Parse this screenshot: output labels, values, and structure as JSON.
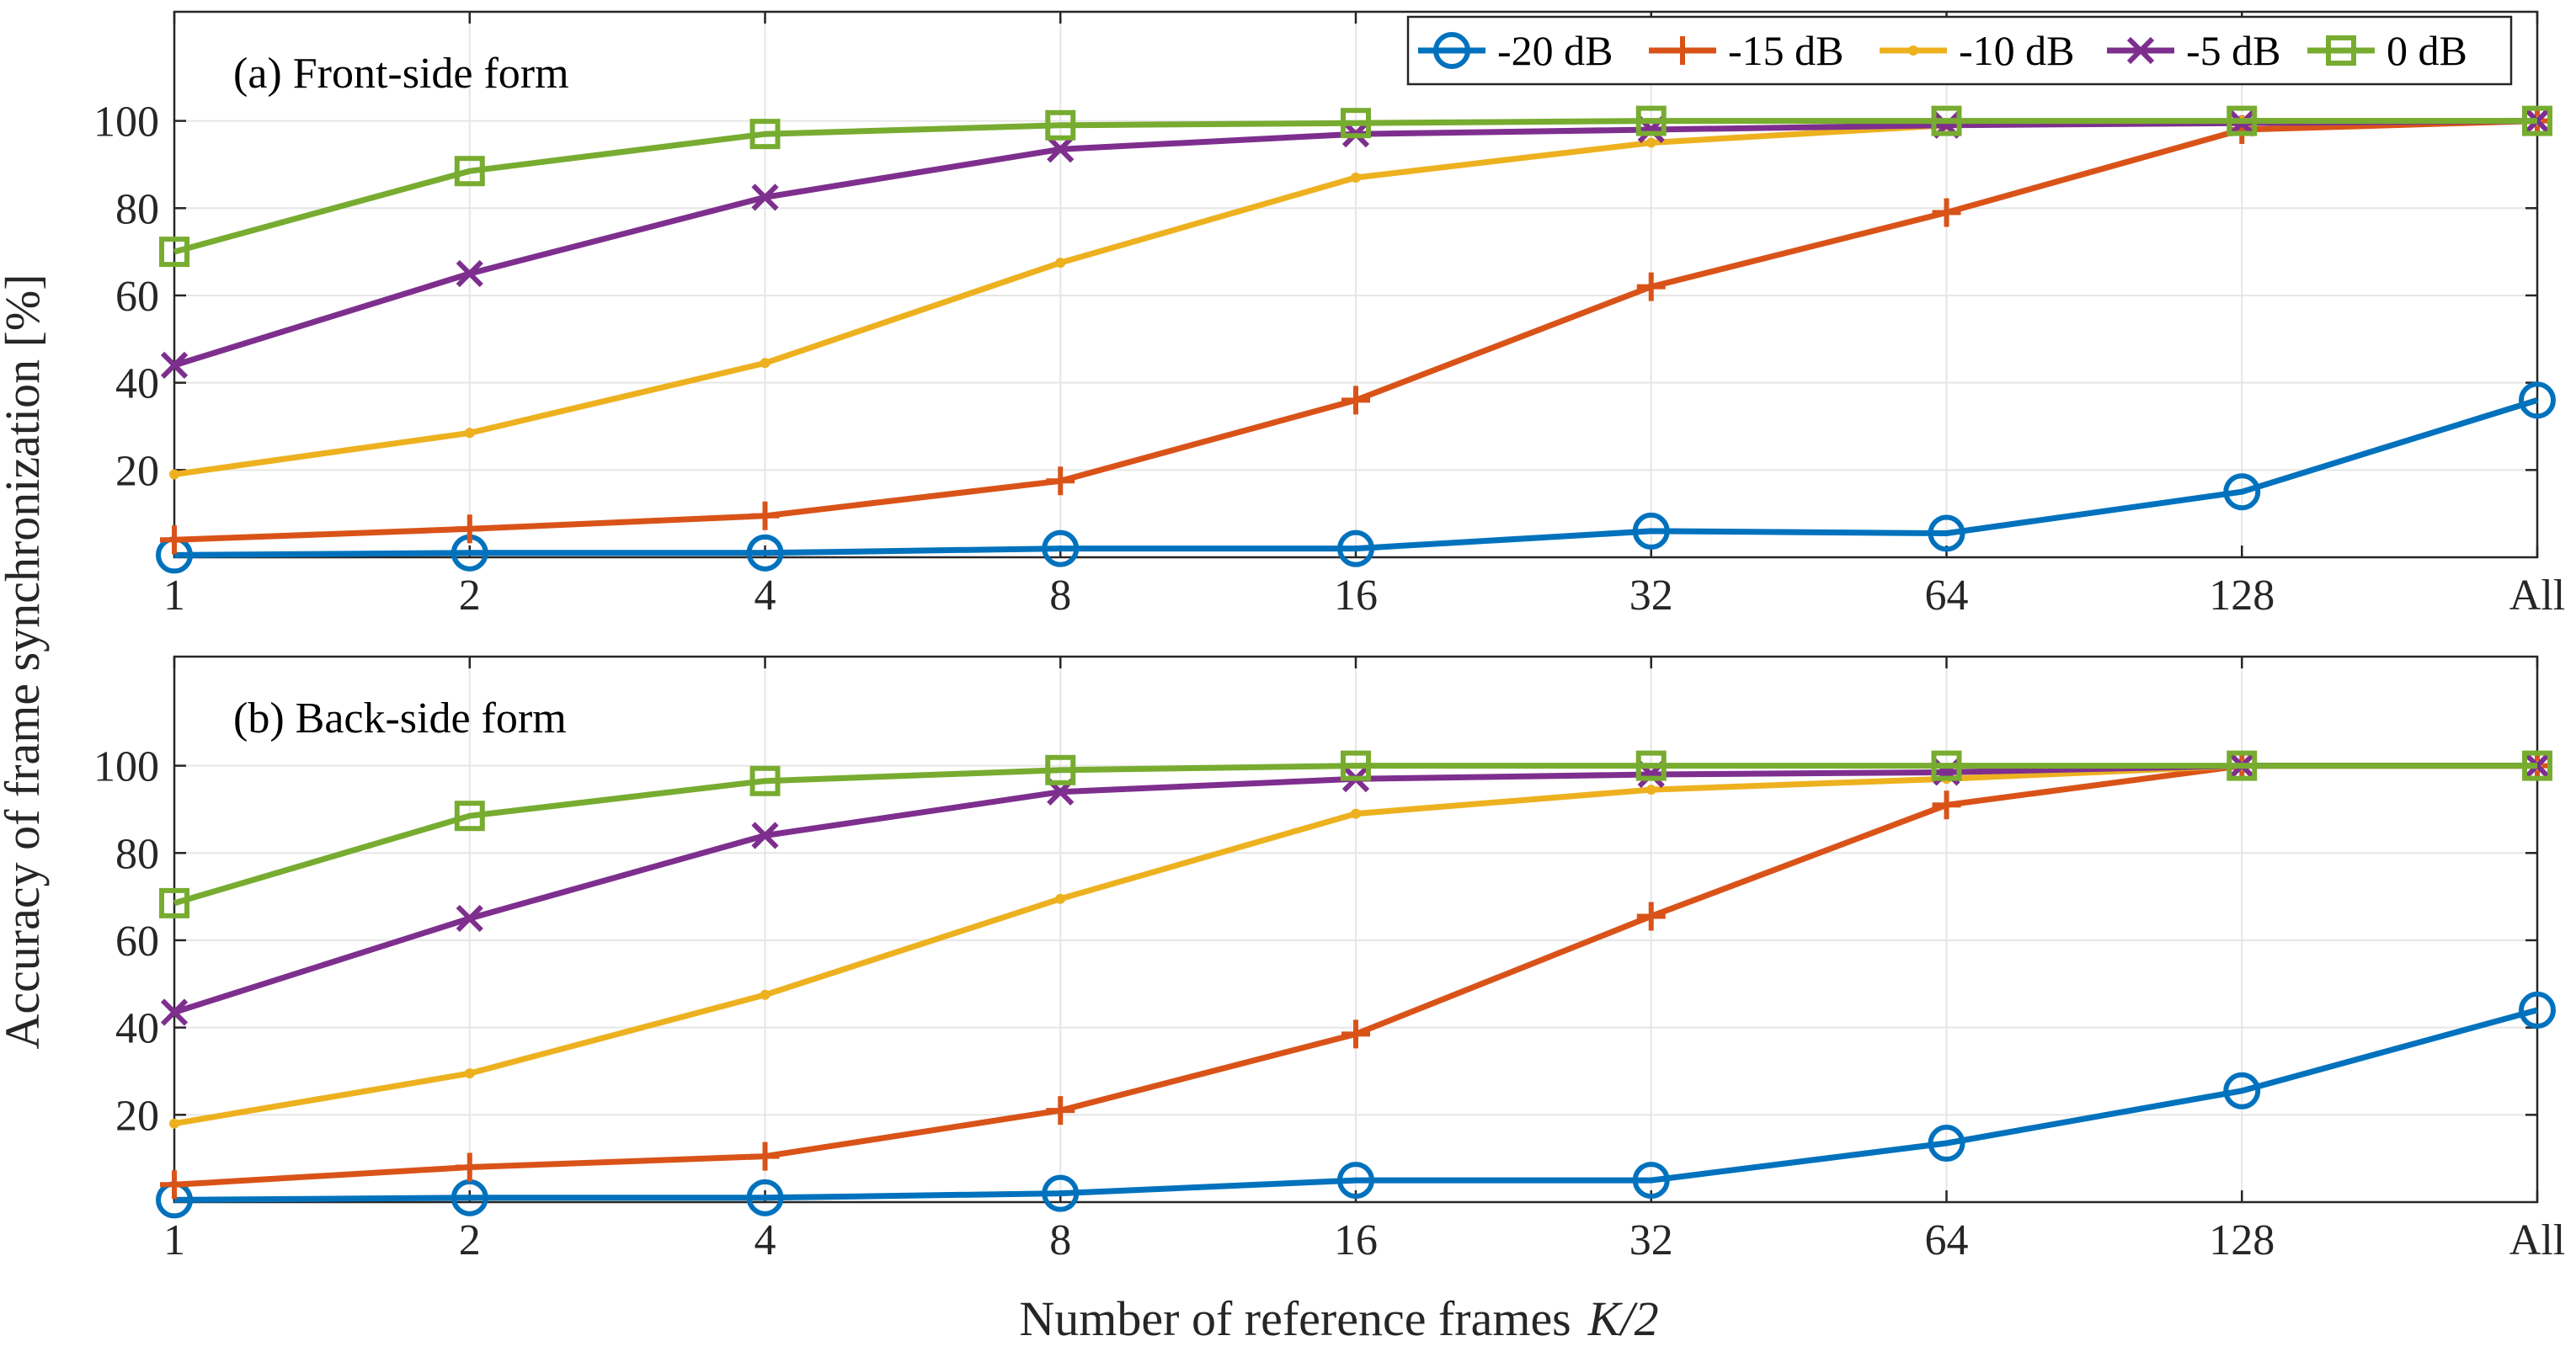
{
  "chart_data": [
    {
      "type": "line",
      "title": "(a) Front-side form",
      "categories": [
        "1",
        "2",
        "4",
        "8",
        "16",
        "32",
        "64",
        "128",
        "All"
      ],
      "xlabel": "",
      "ylabel": "",
      "ylim": [
        0,
        125
      ],
      "yticks": [
        20,
        40,
        60,
        80,
        100
      ],
      "grid": true,
      "legend": "top-right",
      "series": [
        {
          "name": "-20 dB",
          "color": "#0072BD",
          "marker": "circle",
          "values": [
            0.5,
            1,
            1,
            2,
            2,
            6,
            5.5,
            15,
            36
          ]
        },
        {
          "name": "-15 dB",
          "color": "#D95319",
          "marker": "plus",
          "values": [
            4,
            6.5,
            9.5,
            17.5,
            36,
            62,
            79,
            98,
            100
          ]
        },
        {
          "name": "-10 dB",
          "color": "#EDB120",
          "marker": "dot",
          "values": [
            19,
            28.5,
            44.5,
            67.5,
            87,
            95,
            99,
            100,
            100
          ]
        },
        {
          "name": "-5 dB",
          "color": "#7E2F8E",
          "marker": "x",
          "values": [
            44,
            65,
            82.5,
            93.5,
            97,
            98,
            99,
            99.5,
            100
          ]
        },
        {
          "name": "0 dB",
          "color": "#77AC30",
          "marker": "square",
          "values": [
            70,
            88.5,
            97,
            99,
            99.5,
            100,
            100,
            100,
            100
          ]
        }
      ]
    },
    {
      "type": "line",
      "title": "(b) Back-side form",
      "categories": [
        "1",
        "2",
        "4",
        "8",
        "16",
        "32",
        "64",
        "128",
        "All"
      ],
      "xlabel": "Number of reference frames",
      "xlabel_var": "K/2",
      "ylabel": "Accuracy of frame synchronization [%]",
      "ylim": [
        0,
        125
      ],
      "yticks": [
        20,
        40,
        60,
        80,
        100
      ],
      "grid": true,
      "series": [
        {
          "name": "-20 dB",
          "color": "#0072BD",
          "marker": "circle",
          "values": [
            0.5,
            1,
            1,
            2,
            5,
            5,
            13.5,
            25.5,
            44
          ]
        },
        {
          "name": "-15 dB",
          "color": "#D95319",
          "marker": "plus",
          "values": [
            4,
            8,
            10.5,
            21,
            38.5,
            65.5,
            91,
            100,
            100
          ]
        },
        {
          "name": "-10 dB",
          "color": "#EDB120",
          "marker": "dot",
          "values": [
            18,
            29.5,
            47.5,
            69.5,
            89,
            94.5,
            97,
            100,
            100
          ]
        },
        {
          "name": "-5 dB",
          "color": "#7E2F8E",
          "marker": "x",
          "values": [
            43.5,
            65,
            84,
            94,
            97,
            98,
            98.5,
            100,
            100
          ]
        },
        {
          "name": "0 dB",
          "color": "#77AC30",
          "marker": "square",
          "values": [
            68.5,
            88.5,
            96.5,
            99,
            100,
            100,
            100,
            100,
            100
          ]
        }
      ]
    }
  ]
}
